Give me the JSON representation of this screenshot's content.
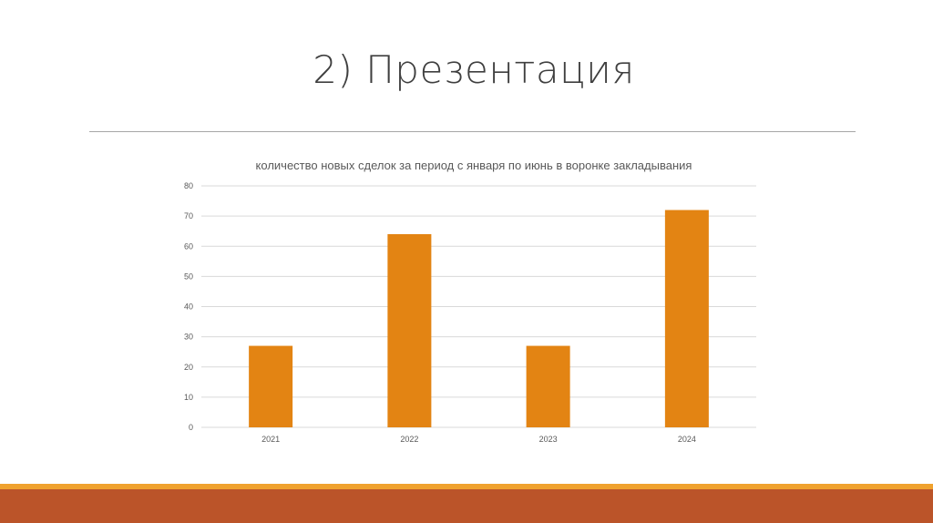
{
  "slide": {
    "title": "2) Презентация"
  },
  "colors": {
    "bar": "#e38413",
    "gridline": "#d9d9d9",
    "axis_text": "#595959",
    "footer_accent": "#f0a22e",
    "footer_main": "#bb5429"
  },
  "chart_data": {
    "type": "bar",
    "title": "количество новых сделок за период с января по июнь в воронке закладывания",
    "categories": [
      "2021",
      "2022",
      "2023",
      "2024"
    ],
    "values": [
      27,
      64,
      27,
      72
    ],
    "yticks": [
      "0",
      "10",
      "20",
      "30",
      "40",
      "50",
      "60",
      "70",
      "80"
    ],
    "ylim": [
      0,
      80
    ],
    "grid": true,
    "legend": "none"
  }
}
